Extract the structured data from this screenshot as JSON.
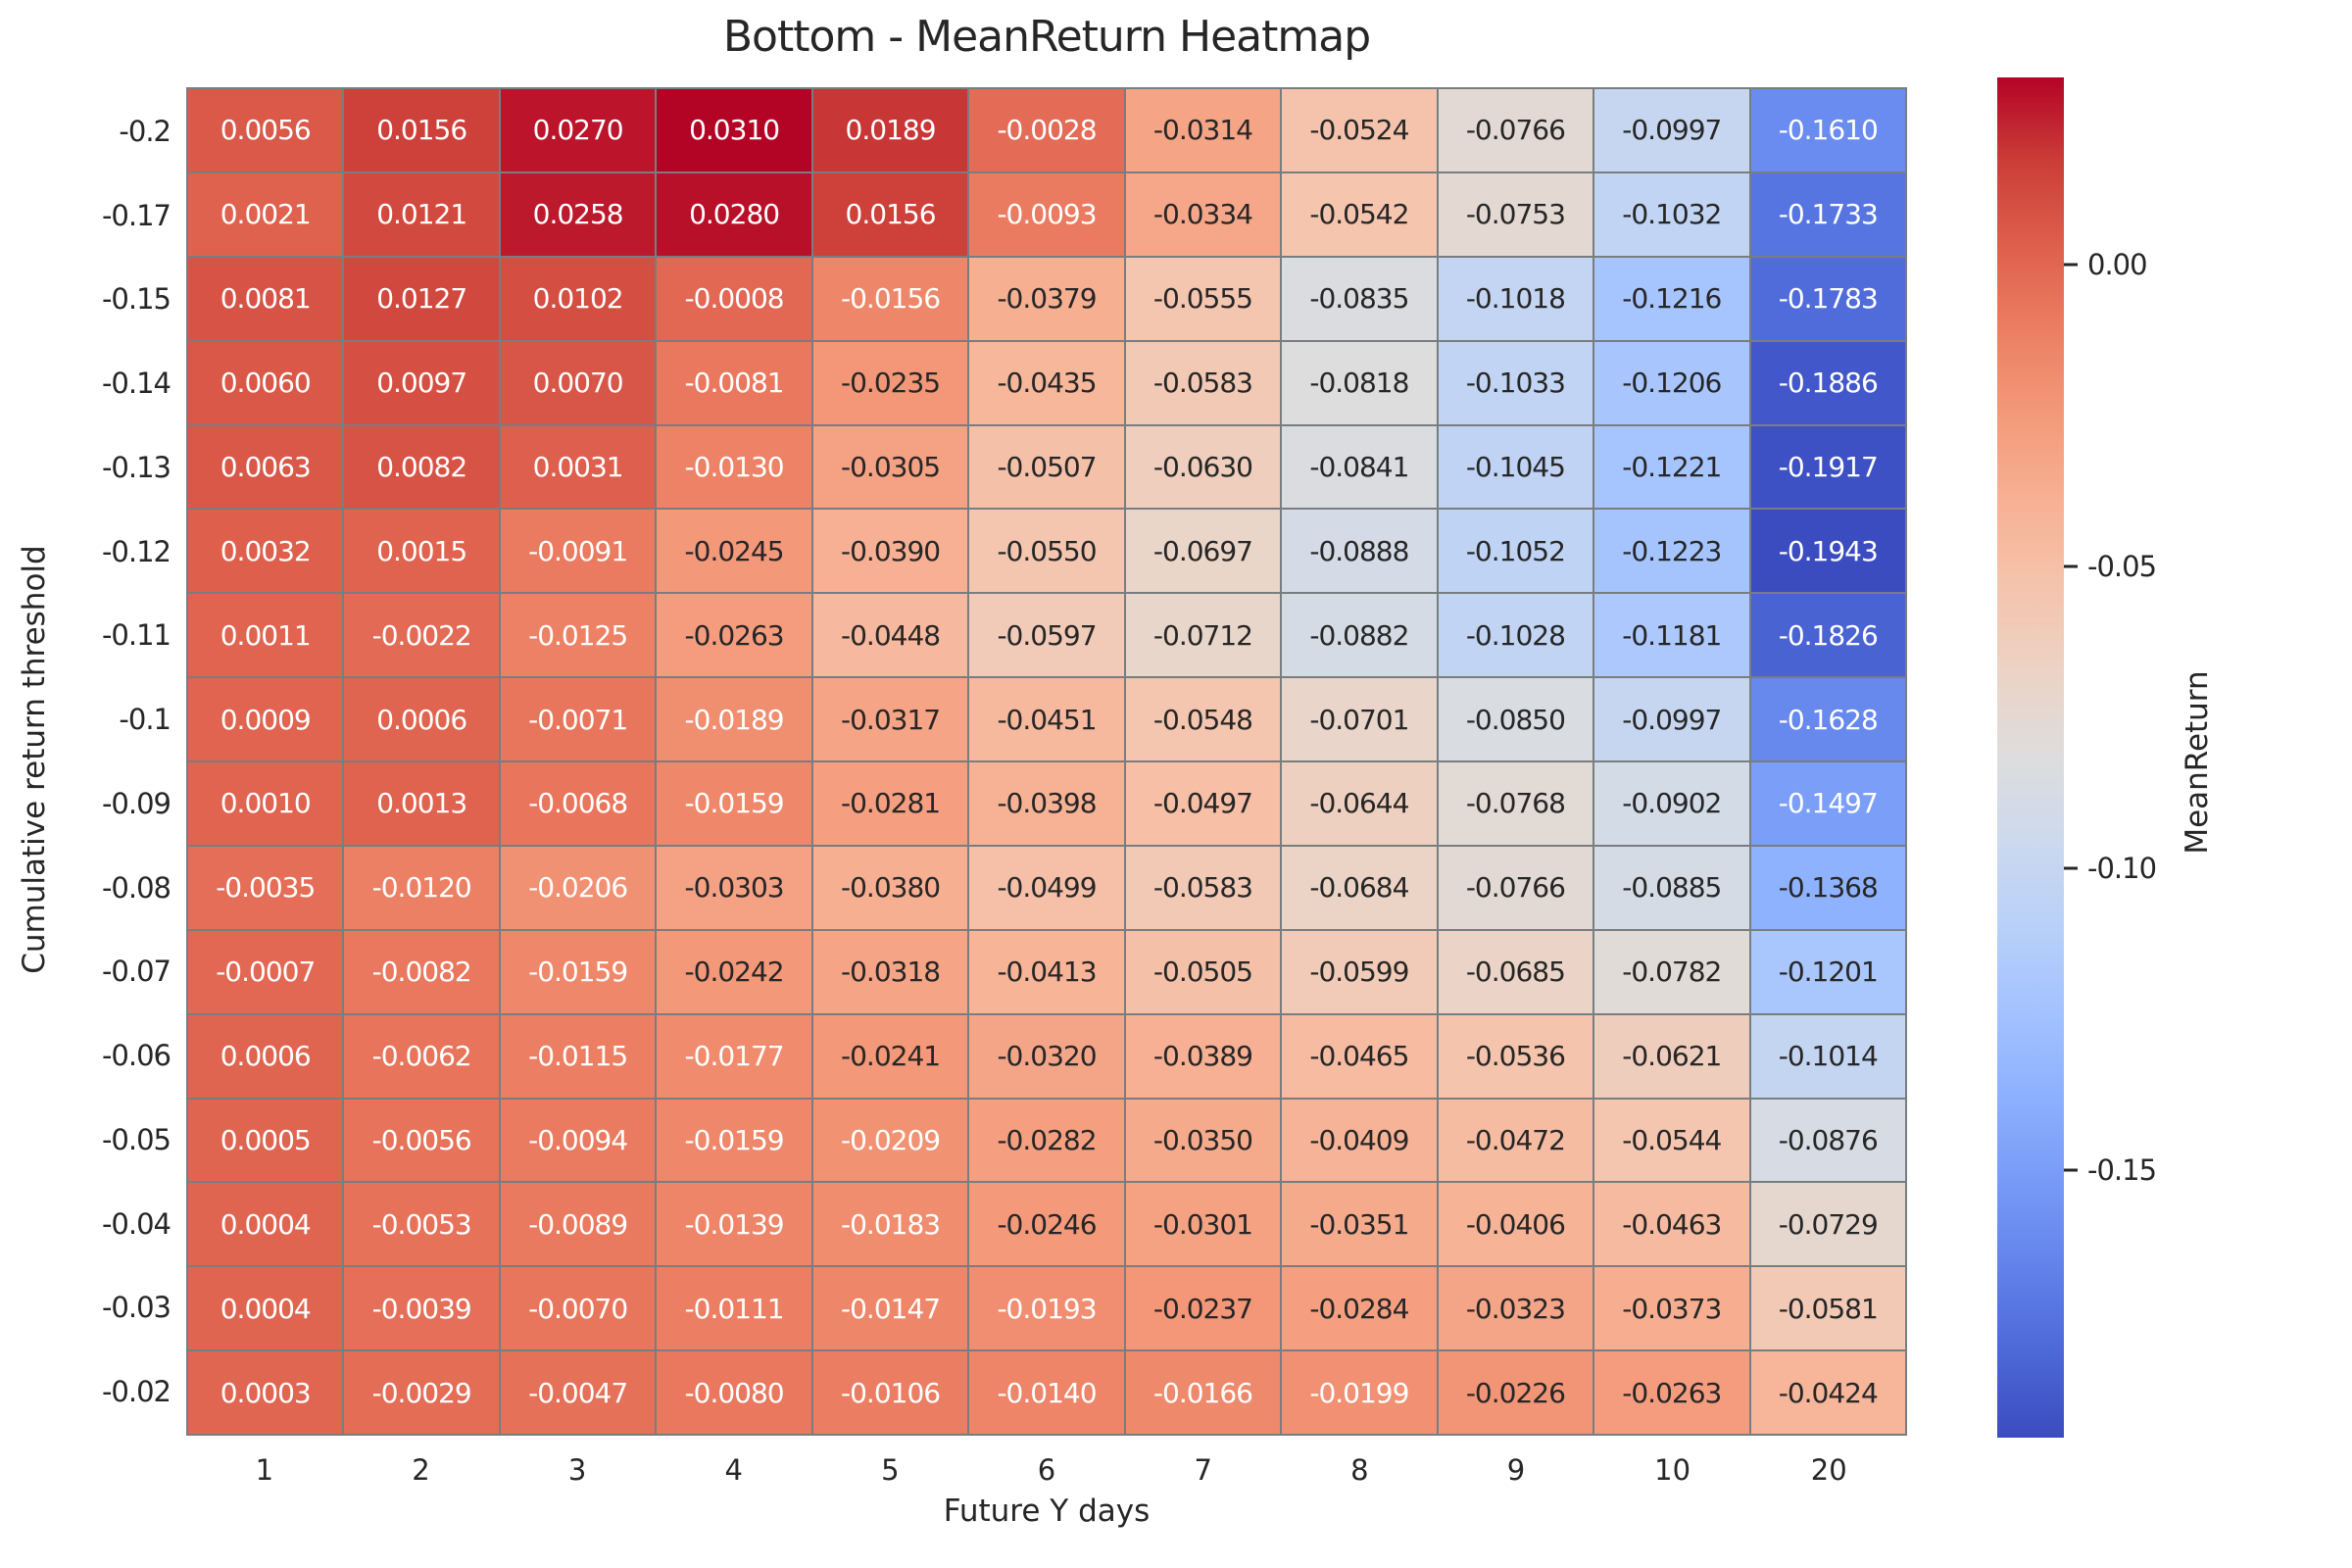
{
  "title": "Bottom - MeanReturn Heatmap",
  "chart_data": {
    "type": "heatmap",
    "title": "Bottom - MeanReturn Heatmap",
    "xlabel": "Future Y days",
    "ylabel": "Cumulative return threshold",
    "x_categories": [
      "1",
      "2",
      "3",
      "4",
      "5",
      "6",
      "7",
      "8",
      "9",
      "10",
      "20"
    ],
    "y_categories": [
      "-0.2",
      "-0.17",
      "-0.15",
      "-0.14",
      "-0.13",
      "-0.12",
      "-0.11",
      "-0.1",
      "-0.09",
      "-0.08",
      "-0.07",
      "-0.06",
      "-0.05",
      "-0.04",
      "-0.03",
      "-0.02"
    ],
    "values": [
      [
        0.0056,
        0.0156,
        0.027,
        0.031,
        0.0189,
        -0.0028,
        -0.0314,
        -0.0524,
        -0.0766,
        -0.0997,
        -0.161
      ],
      [
        0.0021,
        0.0121,
        0.0258,
        0.028,
        0.0156,
        -0.0093,
        -0.0334,
        -0.0542,
        -0.0753,
        -0.1032,
        -0.1733
      ],
      [
        0.0081,
        0.0127,
        0.0102,
        -0.0008,
        -0.0156,
        -0.0379,
        -0.0555,
        -0.0835,
        -0.1018,
        -0.1216,
        -0.1783
      ],
      [
        0.006,
        0.0097,
        0.007,
        -0.0081,
        -0.0235,
        -0.0435,
        -0.0583,
        -0.0818,
        -0.1033,
        -0.1206,
        -0.1886
      ],
      [
        0.0063,
        0.0082,
        0.0031,
        -0.013,
        -0.0305,
        -0.0507,
        -0.063,
        -0.0841,
        -0.1045,
        -0.1221,
        -0.1917
      ],
      [
        0.0032,
        0.0015,
        -0.0091,
        -0.0245,
        -0.039,
        -0.055,
        -0.0697,
        -0.0888,
        -0.1052,
        -0.1223,
        -0.1943
      ],
      [
        0.0011,
        -0.0022,
        -0.0125,
        -0.0263,
        -0.0448,
        -0.0597,
        -0.0712,
        -0.0882,
        -0.1028,
        -0.1181,
        -0.1826
      ],
      [
        0.0009,
        0.0006,
        -0.0071,
        -0.0189,
        -0.0317,
        -0.0451,
        -0.0548,
        -0.0701,
        -0.085,
        -0.0997,
        -0.1628
      ],
      [
        0.001,
        0.0013,
        -0.0068,
        -0.0159,
        -0.0281,
        -0.0398,
        -0.0497,
        -0.0644,
        -0.0768,
        -0.0902,
        -0.1497
      ],
      [
        -0.0035,
        -0.012,
        -0.0206,
        -0.0303,
        -0.038,
        -0.0499,
        -0.0583,
        -0.0684,
        -0.0766,
        -0.0885,
        -0.1368
      ],
      [
        -0.0007,
        -0.0082,
        -0.0159,
        -0.0242,
        -0.0318,
        -0.0413,
        -0.0505,
        -0.0599,
        -0.0685,
        -0.0782,
        -0.1201
      ],
      [
        0.0006,
        -0.0062,
        -0.0115,
        -0.0177,
        -0.0241,
        -0.032,
        -0.0389,
        -0.0465,
        -0.0536,
        -0.0621,
        -0.1014
      ],
      [
        0.0005,
        -0.0056,
        -0.0094,
        -0.0159,
        -0.0209,
        -0.0282,
        -0.035,
        -0.0409,
        -0.0472,
        -0.0544,
        -0.0876
      ],
      [
        0.0004,
        -0.0053,
        -0.0089,
        -0.0139,
        -0.0183,
        -0.0246,
        -0.0301,
        -0.0351,
        -0.0406,
        -0.0463,
        -0.0729
      ],
      [
        0.0004,
        -0.0039,
        -0.007,
        -0.0111,
        -0.0147,
        -0.0193,
        -0.0237,
        -0.0284,
        -0.0323,
        -0.0373,
        -0.0581
      ],
      [
        0.0003,
        -0.0029,
        -0.0047,
        -0.008,
        -0.0106,
        -0.014,
        -0.0166,
        -0.0199,
        -0.0226,
        -0.0263,
        -0.0424
      ]
    ],
    "annotation_decimals": 4,
    "vmin": -0.1943,
    "vmax": 0.031,
    "colormap": "coolwarm",
    "colormap_stops": [
      [
        59,
        76,
        192
      ],
      [
        77,
        104,
        215
      ],
      [
        98,
        130,
        234
      ],
      [
        119,
        154,
        247
      ],
      [
        141,
        176,
        254
      ],
      [
        163,
        194,
        255
      ],
      [
        184,
        208,
        249
      ],
      [
        204,
        217,
        238
      ],
      [
        221,
        221,
        221
      ],
      [
        236,
        211,
        197
      ],
      [
        245,
        196,
        173
      ],
      [
        247,
        177,
        148
      ],
      [
        244,
        154,
        123
      ],
      [
        236,
        127,
        99
      ],
      [
        222,
        96,
        77
      ],
      [
        203,
        62,
        56
      ],
      [
        180,
        4,
        38
      ]
    ],
    "grid": true,
    "legend_position": "right-colorbar",
    "colorbar": {
      "label": "MeanReturn",
      "ticks": [
        {
          "value": 0.0,
          "label": "0.00"
        },
        {
          "value": -0.05,
          "label": "-0.05"
        },
        {
          "value": -0.1,
          "label": "-0.10"
        },
        {
          "value": -0.15,
          "label": "-0.15"
        }
      ]
    }
  },
  "colors": {
    "grid_line": "#787e80",
    "text_dark": "#262626",
    "text_light": "#ffffff",
    "background": "#ffffff"
  }
}
